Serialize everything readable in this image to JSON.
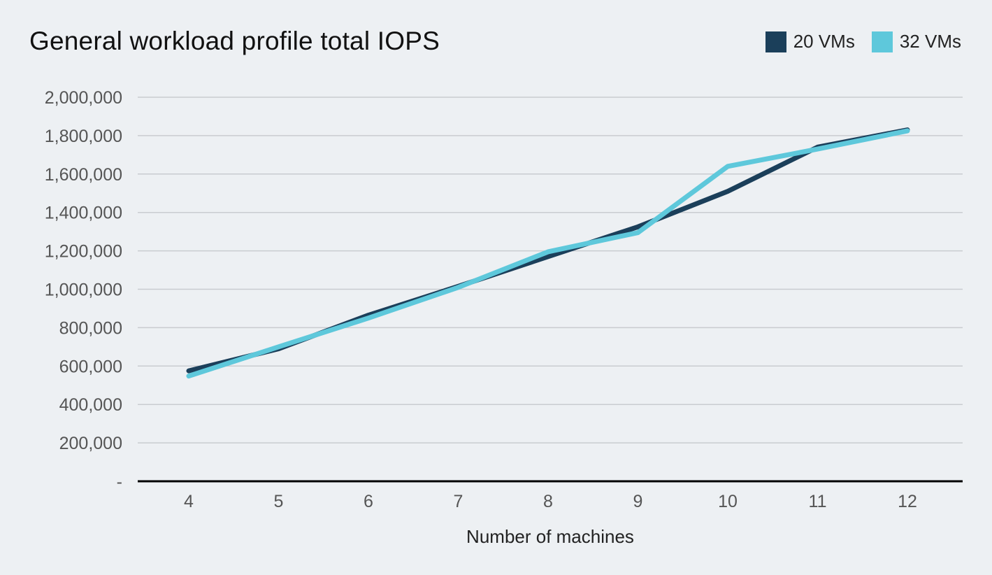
{
  "chart_data": {
    "type": "line",
    "title": "General workload profile total IOPS",
    "xlabel": "Number of machines",
    "ylabel": "",
    "x": [
      4,
      5,
      6,
      7,
      8,
      9,
      10,
      11,
      12
    ],
    "ylim": [
      0,
      2000000
    ],
    "yticks": [
      0,
      200000,
      400000,
      600000,
      800000,
      1000000,
      1200000,
      1400000,
      1600000,
      1800000,
      2000000
    ],
    "ytick_labels": [
      "-",
      "200,000",
      "400,000",
      "600,000",
      "800,000",
      "1,000,000",
      "1,200,000",
      "1,400,000",
      "1,600,000",
      "1,800,000",
      "2,000,000"
    ],
    "xtick_labels": [
      "4",
      "5",
      "6",
      "7",
      "8",
      "9",
      "10",
      "11",
      "12"
    ],
    "grid": true,
    "legend_position": "top-right",
    "series": [
      {
        "name": "20 VMs",
        "color": "#1b3f5a",
        "values": [
          575000,
          690000,
          865000,
          1015000,
          1170000,
          1325000,
          1510000,
          1740000,
          1830000
        ]
      },
      {
        "name": "32 VMs",
        "color": "#5ec8db",
        "values": [
          548000,
          700000,
          850000,
          1010000,
          1195000,
          1295000,
          1640000,
          1730000,
          1825000
        ]
      }
    ]
  }
}
